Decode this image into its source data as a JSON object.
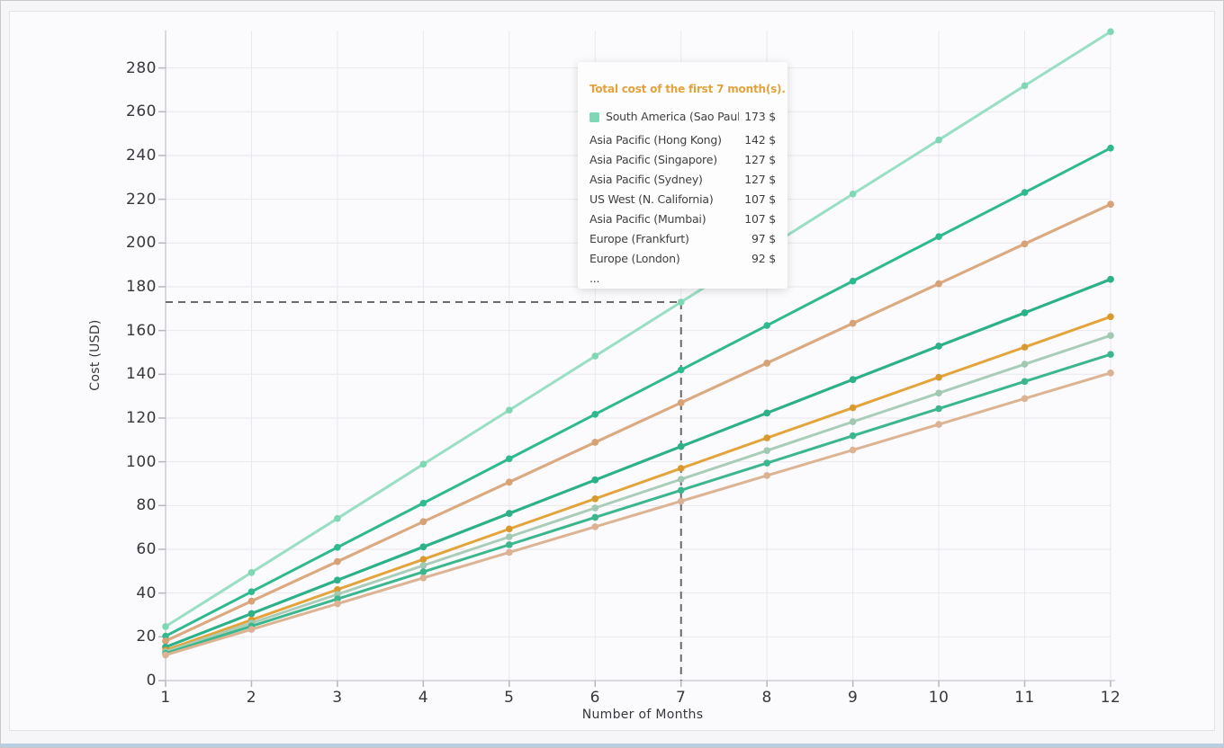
{
  "chart_data": {
    "type": "line",
    "title": "",
    "xlabel": "Number of Months",
    "ylabel": "Cost (USD)",
    "x": [
      1,
      2,
      3,
      4,
      5,
      6,
      7,
      8,
      9,
      10,
      11,
      12
    ],
    "x_tick_labels": [
      "1",
      "2",
      "3",
      "4",
      "5",
      "6",
      "7",
      "8",
      "9",
      "10",
      "11",
      "12"
    ],
    "y_ticks": [
      0,
      20,
      40,
      60,
      80,
      100,
      120,
      140,
      160,
      180,
      200,
      220,
      240,
      260,
      280
    ],
    "ylim": [
      0,
      297
    ],
    "grid": true,
    "legend_position": "tooltip-overlay",
    "series": [
      {
        "name": "South America (Sao Paulo)",
        "color": "#99dfc3",
        "marker_color": "#7fd7b5",
        "values": [
          24.7,
          49.4,
          74.1,
          98.9,
          123.6,
          148.3,
          173,
          197.7,
          222.4,
          247.1,
          271.9,
          296.6
        ]
      },
      {
        "name": "Asia Pacific (Hong Kong)",
        "color": "#2eba8e",
        "marker_color": "#2eba8e",
        "values": [
          20.3,
          40.6,
          60.9,
          81.1,
          101.4,
          121.7,
          142,
          162.3,
          182.6,
          202.9,
          223.1,
          243.4
        ]
      },
      {
        "name": "Asia Pacific (Singapore)",
        "color": "#dcaa80",
        "marker_color": "#d6a276",
        "values": [
          18.1,
          36.3,
          54.4,
          72.6,
          90.7,
          108.9,
          127,
          145.1,
          163.3,
          181.4,
          199.6,
          217.7
        ]
      },
      {
        "name": "Asia Pacific (Sydney)",
        "color": "#dcaa80",
        "marker_color": "#d6a276",
        "values": [
          18.1,
          36.3,
          54.4,
          72.6,
          90.7,
          108.9,
          127,
          145.1,
          163.3,
          181.4,
          199.6,
          217.7
        ]
      },
      {
        "name": "US West (N. California)",
        "color": "#2db189",
        "marker_color": "#2db189",
        "values": [
          15.3,
          30.6,
          45.9,
          61.1,
          76.4,
          91.7,
          107,
          122.3,
          137.6,
          152.9,
          168.1,
          183.4
        ]
      },
      {
        "name": "Asia Pacific (Mumbai)",
        "color": "#2db189",
        "marker_color": "#2db189",
        "values": [
          15.3,
          30.6,
          45.9,
          61.1,
          76.4,
          91.7,
          107,
          122.3,
          137.6,
          152.9,
          168.1,
          183.4
        ]
      },
      {
        "name": "Europe (Frankfurt)",
        "color": "#e3a43c",
        "marker_color": "#d89a2e",
        "values": [
          13.9,
          27.7,
          41.6,
          55.4,
          69.3,
          83.1,
          97,
          110.9,
          124.7,
          138.6,
          152.4,
          166.3
        ]
      },
      {
        "name": "Europe (London)",
        "color": "#a9cdb9",
        "marker_color": "#a0c8b2",
        "values": [
          13.1,
          26.3,
          39.4,
          52.6,
          65.7,
          78.9,
          92,
          105.1,
          118.3,
          131.4,
          144.6,
          157.7
        ]
      },
      {
        "name": "",
        "color": "#3cb78d",
        "marker_color": "#3cb78d",
        "values": [
          12.4,
          24.9,
          37.3,
          49.7,
          62.1,
          74.6,
          87,
          99.4,
          111.9,
          124.3,
          136.7,
          149.1
        ]
      },
      {
        "name": "",
        "color": "#ddb493",
        "marker_color": "#dcb295",
        "values": [
          11.7,
          23.4,
          35.1,
          46.9,
          58.6,
          70.3,
          82,
          93.7,
          105.4,
          117.1,
          128.9,
          140.6
        ]
      }
    ],
    "highlight": {
      "x": 7,
      "y": 173,
      "series": "South America (Sao Paulo)"
    },
    "tooltip": {
      "title": "Total cost of the first 7 month(s).",
      "title_color": "#e2a33c",
      "rows": [
        {
          "label": "South America (Sao Paulo)",
          "value": "173 $",
          "marker_color": "#7fd7b5"
        },
        {
          "label": "Asia Pacific (Hong Kong)",
          "value": "142 $"
        },
        {
          "label": "Asia Pacific (Singapore)",
          "value": "127 $"
        },
        {
          "label": "Asia Pacific (Sydney)",
          "value": "127 $"
        },
        {
          "label": "US West (N. California)",
          "value": "107 $"
        },
        {
          "label": "Asia Pacific (Mumbai)",
          "value": "107 $"
        },
        {
          "label": "Europe (Frankfurt)",
          "value": "97 $"
        },
        {
          "label": "Europe (London)",
          "value": "92 $"
        },
        {
          "label": "...",
          "value": ""
        }
      ]
    },
    "style": {
      "grid_color": "#e9e7ec",
      "axis_color": "#cfcdd4",
      "tick_color": "#b9b7be",
      "crosshair_color": "#6a6a6a"
    }
  }
}
